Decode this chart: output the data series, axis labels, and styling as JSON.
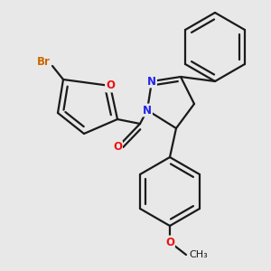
{
  "background_color": "#e8e8e8",
  "bond_color": "#1a1a1a",
  "bond_width": 1.6,
  "atom_colors": {
    "O": "#ee1111",
    "N": "#2222ee",
    "Br": "#cc6600",
    "C": "#1a1a1a"
  },
  "font_size_atom": 8.5,
  "font_size_methoxy": 8.0
}
